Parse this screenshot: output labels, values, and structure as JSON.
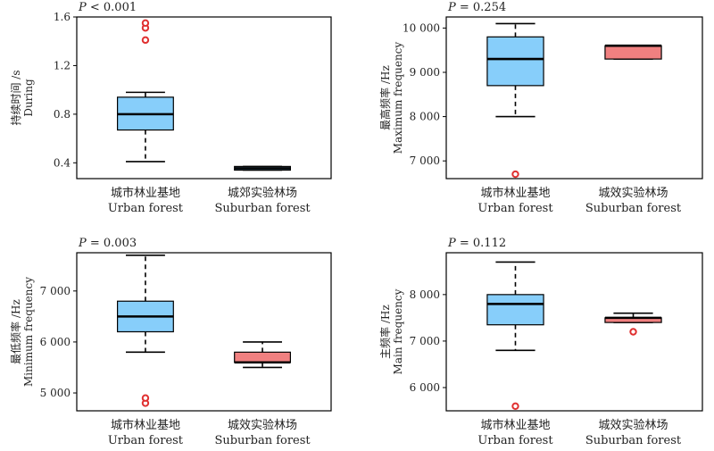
{
  "chart_data": [
    {
      "type": "box",
      "pvalue_prefix": "P",
      "pvalue_text": " < 0.001",
      "ylabel_cn": "持续时间 /s",
      "ylabel_en": "During",
      "ylim": [
        0.27,
        1.6
      ],
      "yticks": [
        0.4,
        0.8,
        1.2,
        1.6
      ],
      "ytick_labels": [
        "0.4",
        "0.8",
        "1.2",
        "1.6"
      ],
      "categories": [
        {
          "cn": "城市林业基地",
          "en": "Urban forest"
        },
        {
          "cn": "城郊实验林场",
          "en": "Suburban forest"
        }
      ],
      "boxes": [
        {
          "whislo": 0.41,
          "q1": 0.67,
          "med": 0.8,
          "q3": 0.94,
          "whishi": 0.98,
          "fliers": [
            1.41,
            1.51,
            1.55
          ],
          "color": "#87cefa"
        },
        {
          "whislo": 0.34,
          "q1": 0.34,
          "med": 0.355,
          "q3": 0.37,
          "whishi": 0.37,
          "fliers": [],
          "color": "#87cefa"
        }
      ]
    },
    {
      "type": "box",
      "pvalue_prefix": "P",
      "pvalue_text": " = 0.254",
      "ylabel_cn": "最高频率 /Hz",
      "ylabel_en": "Maximum frequency",
      "ylim": [
        6600,
        10250
      ],
      "yticks": [
        7000,
        8000,
        9000,
        10000
      ],
      "ytick_labels": [
        "7 000",
        "8 000",
        "9 000",
        "10 000"
      ],
      "categories": [
        {
          "cn": "城市林业基地",
          "en": "Urban forest"
        },
        {
          "cn": "城效实验林场",
          "en": "Suburban forest"
        }
      ],
      "boxes": [
        {
          "whislo": 8000,
          "q1": 8700,
          "med": 9300,
          "q3": 9800,
          "whishi": 10100,
          "fliers": [
            6700
          ],
          "color": "#87cefa"
        },
        {
          "whislo": 9300,
          "q1": 9300,
          "med": 9600,
          "q3": 9600,
          "whishi": 9600,
          "fliers": [],
          "color": "#f08080"
        }
      ]
    },
    {
      "type": "box",
      "pvalue_prefix": "P",
      "pvalue_text": " = 0.003",
      "ylabel_cn": "最低频率 /Hz",
      "ylabel_en": "Minimum frequency",
      "ylim": [
        4650,
        7750
      ],
      "yticks": [
        5000,
        6000,
        7000
      ],
      "ytick_labels": [
        "5 000",
        "6 000",
        "7 000"
      ],
      "categories": [
        {
          "cn": "城市林业基地",
          "en": "Urban forest"
        },
        {
          "cn": "城效实验林场",
          "en": "Suburban forest"
        }
      ],
      "boxes": [
        {
          "whislo": 5800,
          "q1": 6200,
          "med": 6500,
          "q3": 6800,
          "whishi": 7700,
          "fliers": [
            4800,
            4900
          ],
          "color": "#87cefa"
        },
        {
          "whislo": 5500,
          "q1": 5600,
          "med": 5600,
          "q3": 5800,
          "whishi": 6000,
          "fliers": [],
          "color": "#f08080"
        }
      ]
    },
    {
      "type": "box",
      "pvalue_prefix": "P",
      "pvalue_text": " = 0.112",
      "ylabel_cn": "主频率 /Hz",
      "ylabel_en": "Main frequency",
      "ylim": [
        5500,
        8900
      ],
      "yticks": [
        6000,
        7000,
        8000
      ],
      "ytick_labels": [
        "6 000",
        "7 000",
        "8 000"
      ],
      "categories": [
        {
          "cn": "城市林业基地",
          "en": "Urban forest"
        },
        {
          "cn": "城效实验林场",
          "en": "Suburban forest"
        }
      ],
      "boxes": [
        {
          "whislo": 6800,
          "q1": 7350,
          "med": 7800,
          "q3": 8000,
          "whishi": 8700,
          "fliers": [
            5600
          ],
          "color": "#87cefa"
        },
        {
          "whislo": 7400,
          "q1": 7400,
          "med": 7500,
          "q3": 7500,
          "whishi": 7600,
          "fliers": [
            7200
          ],
          "color": "#f08080"
        }
      ]
    }
  ]
}
